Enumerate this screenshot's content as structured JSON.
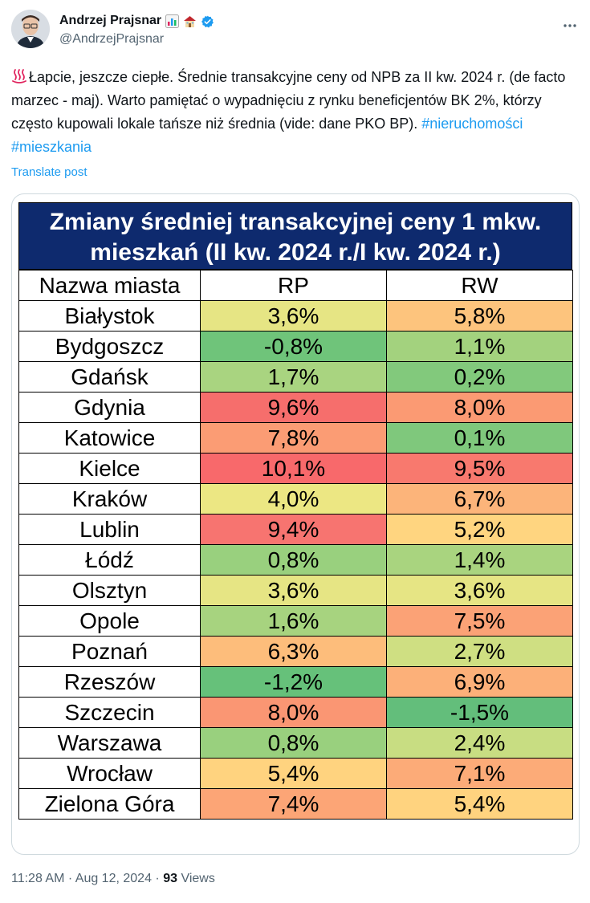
{
  "tweet": {
    "display_name": "Andrzej Prajsnar",
    "handle": "@AndrzejPrajsnar",
    "text": "Łapcie, jeszcze ciepłe. Średnie transakcyjne ceny od NPB za II kw. 2024 r. (de facto marzec - maj). Warto pamiętać o wypadnięciu z rynku beneficjentów BK 2%, którzy często kupowali lokale tańsze niż średnia (vide: dane PKO BP). ",
    "hashtags": [
      "#nieruchomości",
      "#mieszkania"
    ],
    "translate_label": "Translate post",
    "time": "11:28 AM",
    "date": "Aug 12, 2024",
    "views_count": "93",
    "views_label": "Views"
  },
  "icons": {
    "name_emojis": [
      "bar-chart-icon",
      "house-icon"
    ],
    "verified": "verified-badge-icon",
    "more": "more-icon",
    "text_lead": "hot-springs-icon"
  },
  "colors": {
    "accent": "#1d9bf0",
    "title_bg": "#0e2a6e"
  },
  "table": {
    "title": "Zmiany średniej transakcyjnej ceny 1 mkw. mieszkań (II kw. 2024 r./I kw. 2024 r.)",
    "headers": [
      "Nazwa miasta",
      "RP",
      "RW"
    ],
    "rows": [
      {
        "city": "Białystok",
        "rp": "3,6%",
        "rw": "5,8%",
        "rp_color": "#e6e584",
        "rw_color": "#fdc47d"
      },
      {
        "city": "Bydgoszcz",
        "rp": "-0,8%",
        "rw": "1,1%",
        "rp_color": "#6fc47a",
        "rw_color": "#a3d27e"
      },
      {
        "city": "Gdańsk",
        "rp": "1,7%",
        "rw": "0,2%",
        "rp_color": "#a9d480",
        "rw_color": "#82c97c"
      },
      {
        "city": "Gdynia",
        "rp": "9,6%",
        "rw": "8,0%",
        "rp_color": "#f66e6c",
        "rw_color": "#fb9a73"
      },
      {
        "city": "Katowice",
        "rp": "7,8%",
        "rw": "0,1%",
        "rp_color": "#fb9c74",
        "rw_color": "#7fc87c"
      },
      {
        "city": "Kielce",
        "rp": "10,1%",
        "rw": "9,5%",
        "rp_color": "#f8696b",
        "rw_color": "#f8796e"
      },
      {
        "city": "Kraków",
        "rp": "4,0%",
        "rw": "6,7%",
        "rp_color": "#ece783",
        "rw_color": "#fcb47a"
      },
      {
        "city": "Lublin",
        "rp": "9,4%",
        "rw": "5,2%",
        "rp_color": "#f77470",
        "rw_color": "#ffd580"
      },
      {
        "city": "Łódź",
        "rp": "0,8%",
        "rw": "1,4%",
        "rp_color": "#99d07e",
        "rw_color": "#a9d47f"
      },
      {
        "city": "Olsztyn",
        "rp": "3,6%",
        "rw": "3,6%",
        "rp_color": "#e6e584",
        "rw_color": "#e6e584"
      },
      {
        "city": "Opole",
        "rp": "1,6%",
        "rw": "7,5%",
        "rp_color": "#a7d37f",
        "rw_color": "#fba276"
      },
      {
        "city": "Poznań",
        "rp": "6,3%",
        "rw": "2,7%",
        "rp_color": "#fdbd7b",
        "rw_color": "#cfdf82"
      },
      {
        "city": "Rzeszów",
        "rp": "-1,2%",
        "rw": "6,9%",
        "rp_color": "#66c17a",
        "rw_color": "#fcb079"
      },
      {
        "city": "Szczecin",
        "rp": "8,0%",
        "rw": "-1,5%",
        "rp_color": "#fa9673",
        "rw_color": "#63be7b"
      },
      {
        "city": "Warszawa",
        "rp": "0,8%",
        "rw": "2,4%",
        "rp_color": "#99d07e",
        "rw_color": "#c8dd82"
      },
      {
        "city": "Wrocław",
        "rp": "5,4%",
        "rw": "7,1%",
        "rp_color": "#ffd37f",
        "rw_color": "#fcab78"
      },
      {
        "city": "Zielona Góra",
        "rp": "7,4%",
        "rw": "5,4%",
        "rp_color": "#fca576",
        "rw_color": "#ffd37f"
      }
    ]
  }
}
